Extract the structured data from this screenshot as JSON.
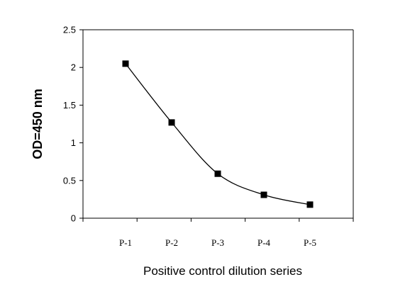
{
  "chart_data": {
    "type": "line",
    "categories": [
      "P-1",
      "P-2",
      "P-3",
      "P-4",
      "P-5"
    ],
    "series": [
      {
        "values": [
          2.05,
          1.27,
          0.59,
          0.31,
          0.18
        ]
      }
    ],
    "xlabel": "Positive control dilution series",
    "ylabel": "OD=450 nm",
    "ylim": [
      0,
      2.5
    ],
    "yticks": [
      "0",
      "0.5",
      "1",
      "1.5",
      "2",
      "2.5"
    ],
    "grid": false,
    "legend": "none",
    "line_color": "#000000",
    "marker": "square"
  }
}
